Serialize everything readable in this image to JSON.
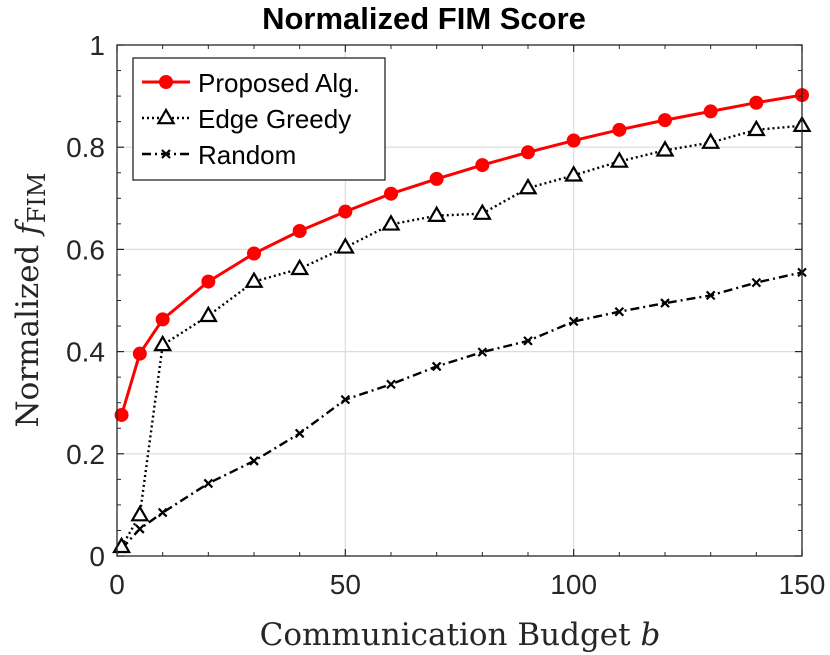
{
  "chart_data": {
    "type": "line",
    "title": "Normalized FIM Score",
    "xlabel": "Communication Budget",
    "xlabel_var": "b",
    "ylabel": "Normalized",
    "ylabel_var": "f",
    "ylabel_sub": "FIM",
    "xlim": [
      0,
      150
    ],
    "ylim": [
      0,
      1
    ],
    "x_ticks": [
      0,
      50,
      100,
      150
    ],
    "x_tick_labels": [
      "0",
      "50",
      "100",
      "150"
    ],
    "y_ticks": [
      0,
      0.2,
      0.4,
      0.6,
      0.8,
      1
    ],
    "y_tick_labels": [
      "0",
      "0.2",
      "0.4",
      "0.6",
      "0.8",
      "1"
    ],
    "grid": true,
    "legend_position": "top-left",
    "series": [
      {
        "name": "Proposed Alg.",
        "color": "#ff0000",
        "marker": "filled-circle",
        "line_style": "solid",
        "x": [
          1,
          5,
          10,
          20,
          30,
          40,
          50,
          60,
          70,
          80,
          90,
          100,
          110,
          120,
          130,
          140,
          150
        ],
        "values": [
          0.276,
          0.396,
          0.463,
          0.537,
          0.592,
          0.636,
          0.674,
          0.709,
          0.738,
          0.765,
          0.79,
          0.813,
          0.834,
          0.853,
          0.87,
          0.887,
          0.902
        ]
      },
      {
        "name": "Edge Greedy",
        "color": "#000000",
        "marker": "open-triangle",
        "line_style": "dotted",
        "x": [
          1,
          5,
          10,
          20,
          30,
          40,
          50,
          60,
          70,
          80,
          90,
          100,
          110,
          120,
          130,
          140,
          150
        ],
        "values": [
          0.018,
          0.08,
          0.413,
          0.47,
          0.537,
          0.562,
          0.604,
          0.649,
          0.666,
          0.67,
          0.72,
          0.745,
          0.772,
          0.794,
          0.809,
          0.834,
          0.842
        ]
      },
      {
        "name": "Random",
        "color": "#000000",
        "marker": "x",
        "line_style": "dashdot",
        "x": [
          1,
          5,
          10,
          20,
          30,
          40,
          50,
          60,
          70,
          80,
          90,
          100,
          110,
          120,
          130,
          140,
          150
        ],
        "values": [
          0.014,
          0.053,
          0.085,
          0.142,
          0.186,
          0.24,
          0.306,
          0.336,
          0.371,
          0.399,
          0.421,
          0.459,
          0.478,
          0.495,
          0.51,
          0.535,
          0.555
        ]
      }
    ]
  }
}
